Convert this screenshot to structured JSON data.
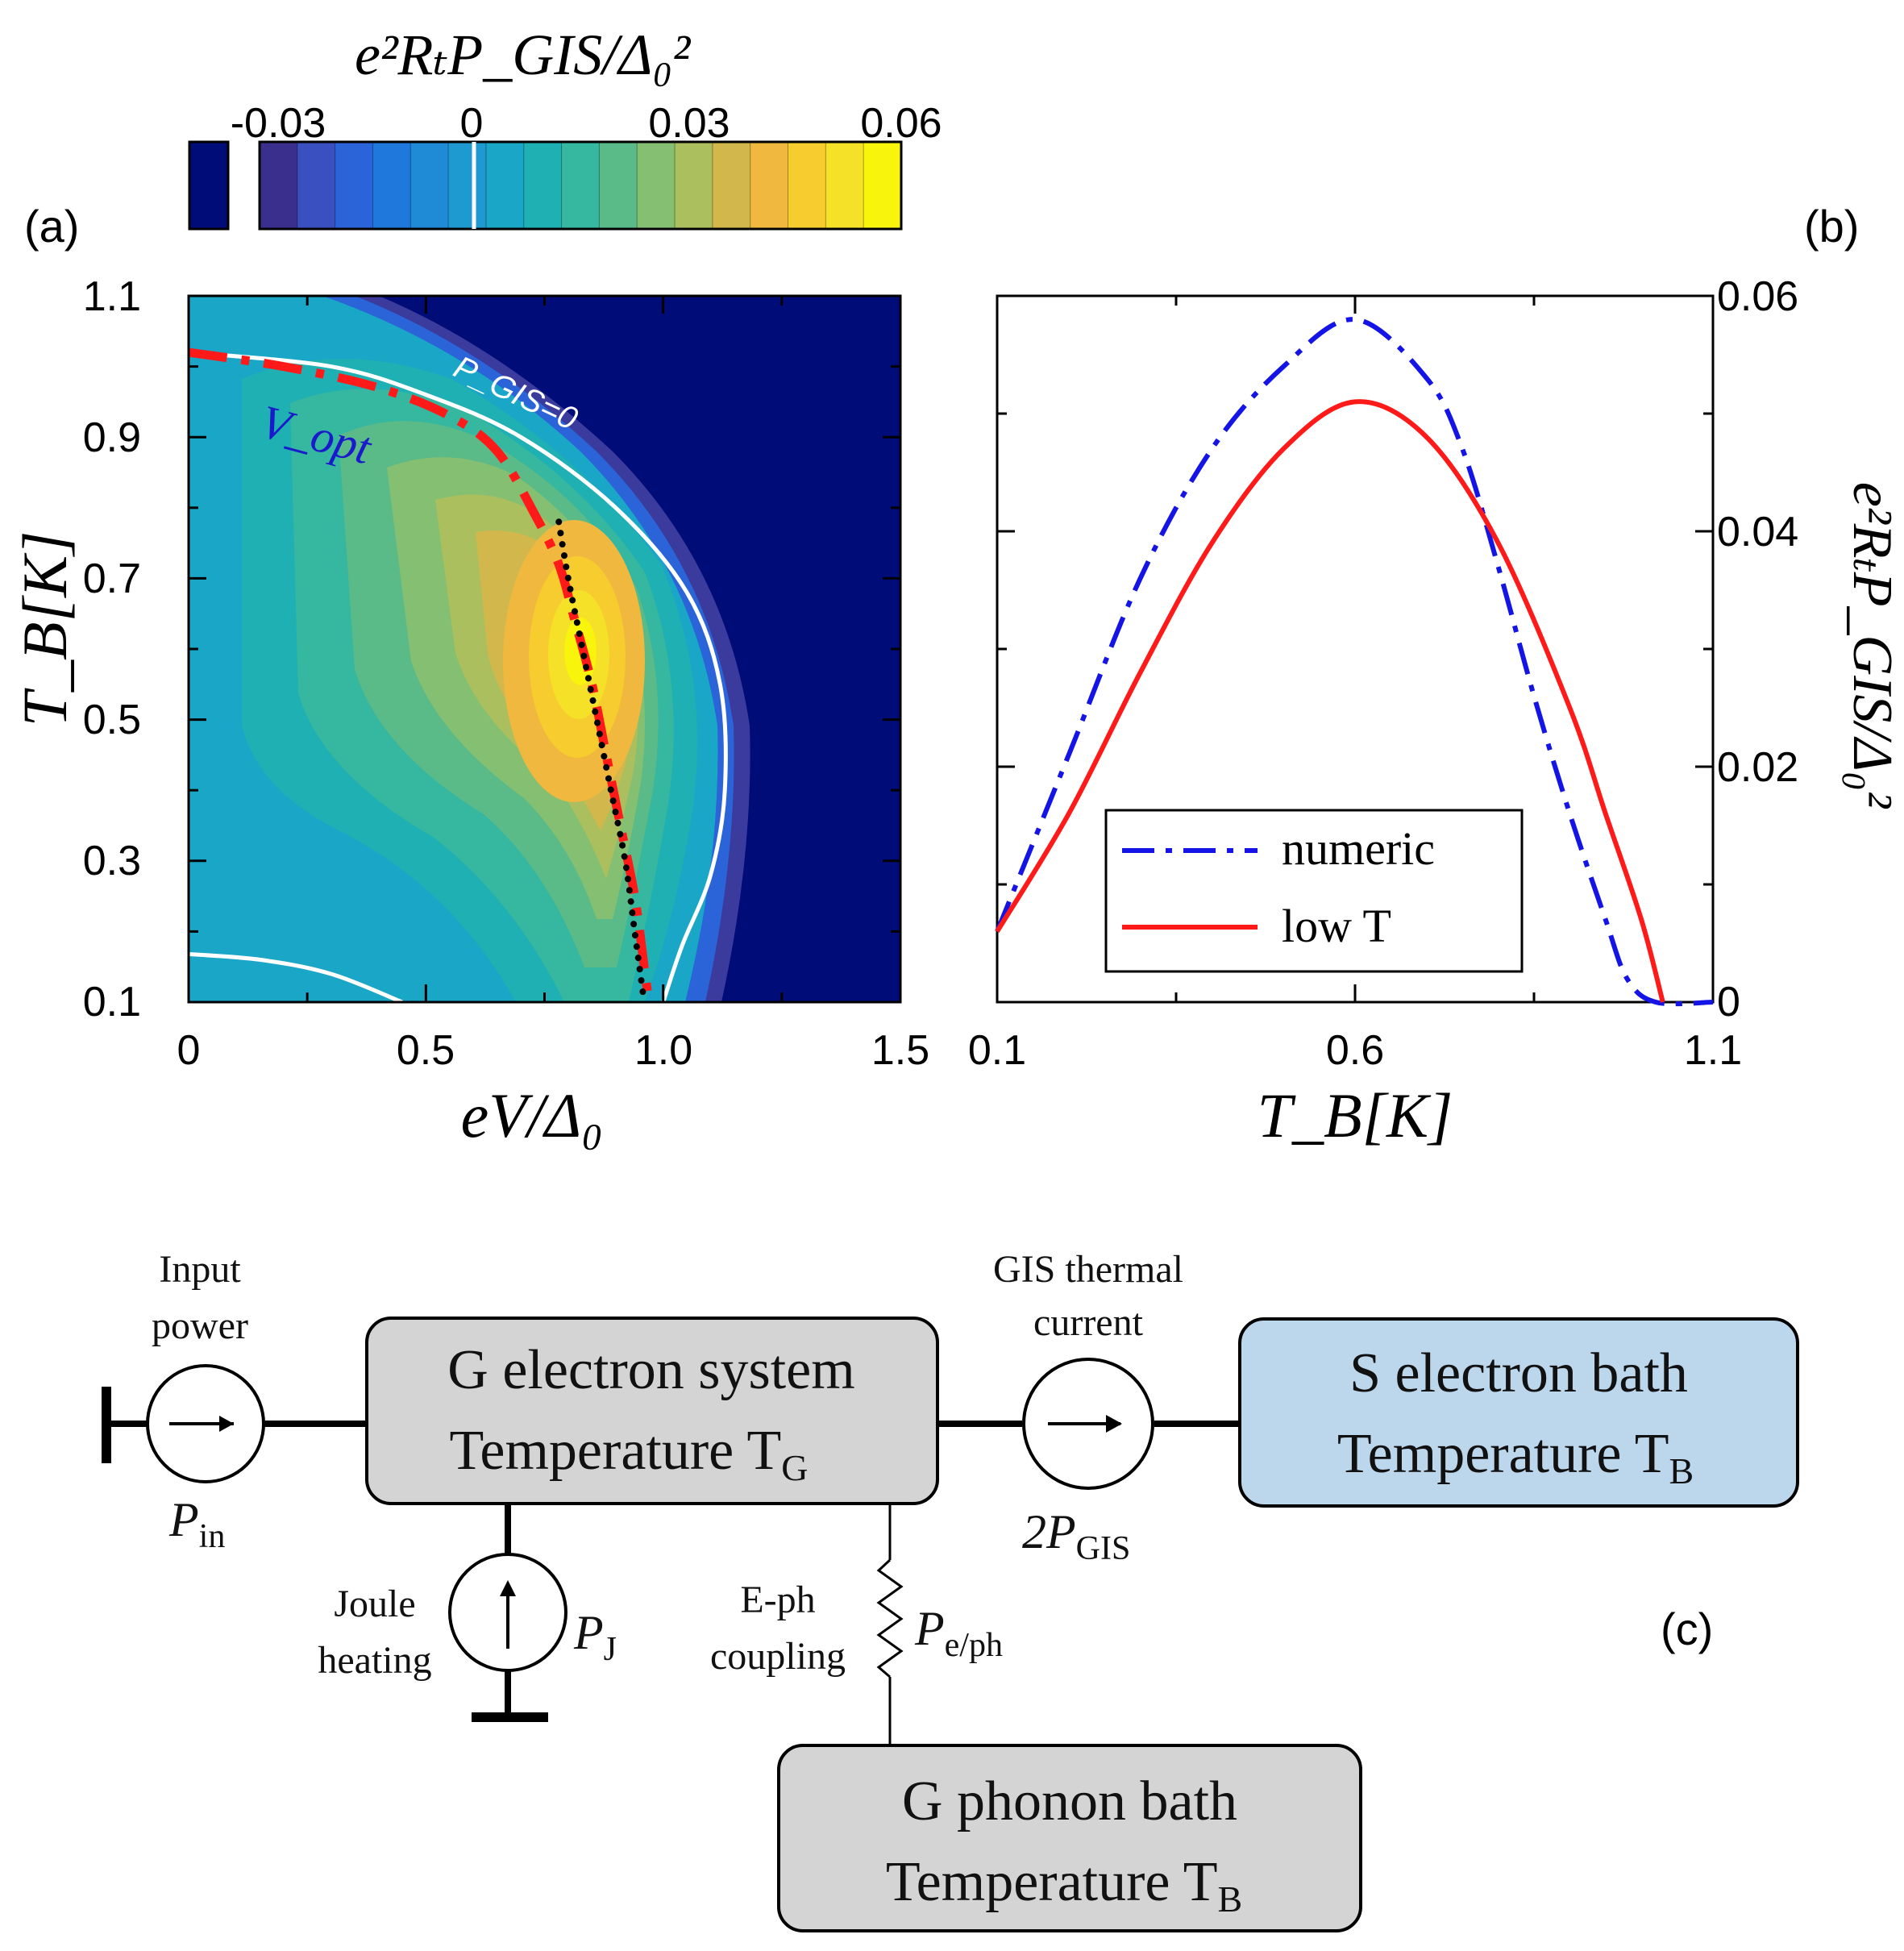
{
  "panel_labels": {
    "a": "(a)",
    "b": "(b)",
    "c": "(c)"
  },
  "colorbar": {
    "title": "e²RₜP_GIS/Δ₀²",
    "tick_labels": [
      "-0.03",
      "0",
      "0.03",
      "0.06"
    ],
    "range": [
      -0.03,
      0.06
    ],
    "colors": [
      "#3b2f8e",
      "#3a4fc0",
      "#2a64d8",
      "#1f78dc",
      "#1f8ad6",
      "#1e9ad0",
      "#1aa6c6",
      "#1fb0b4",
      "#35b7a0",
      "#5abb88",
      "#84bf72",
      "#acbf5e",
      "#d2b84c",
      "#f0b83e",
      "#f7cc2e",
      "#f5e128",
      "#f8f40c"
    ],
    "saturation_color": "#000c78"
  },
  "chart_data": [
    {
      "type": "heatmap",
      "panel": "(a)",
      "xlabel": "eV/Δ₀",
      "ylabel": "T_B[K]",
      "xlim": [
        0,
        1.5
      ],
      "ylim": [
        0.1,
        1.1
      ],
      "x_ticks": [
        "0",
        "0.5",
        "1.0",
        "1.5"
      ],
      "y_ticks": [
        "0.1",
        "0.3",
        "0.5",
        "0.7",
        "0.9",
        "1.1"
      ],
      "value_range": [
        -0.03,
        0.06
      ],
      "maximum": {
        "x": 0.84,
        "y": 0.6,
        "value": 0.058
      },
      "annotations": [
        "P_GIS=0",
        "V_opt"
      ],
      "zero_contour_upper": [
        [
          0.0,
          1.02
        ],
        [
          0.3,
          1.0
        ],
        [
          0.5,
          0.96
        ],
        [
          0.7,
          0.9
        ],
        [
          0.9,
          0.8
        ],
        [
          1.05,
          0.68
        ],
        [
          1.12,
          0.55
        ],
        [
          1.13,
          0.4
        ],
        [
          1.1,
          0.28
        ],
        [
          1.04,
          0.18
        ],
        [
          1.0,
          0.1
        ]
      ],
      "zero_contour_lower": [
        [
          0.0,
          0.168
        ],
        [
          0.15,
          0.16
        ],
        [
          0.3,
          0.14
        ],
        [
          0.45,
          0.1
        ]
      ],
      "v_opt_curve": [
        [
          0.0,
          1.02
        ],
        [
          0.2,
          1.0
        ],
        [
          0.4,
          0.97
        ],
        [
          0.55,
          0.93
        ],
        [
          0.65,
          0.88
        ],
        [
          0.73,
          0.79
        ],
        [
          0.78,
          0.72
        ],
        [
          0.81,
          0.65
        ],
        [
          0.85,
          0.55
        ],
        [
          0.88,
          0.45
        ],
        [
          0.91,
          0.35
        ],
        [
          0.94,
          0.25
        ],
        [
          0.96,
          0.15
        ],
        [
          0.97,
          0.1
        ]
      ],
      "low_T_curve": [
        [
          0.78,
          0.78
        ],
        [
          0.8,
          0.7
        ],
        [
          0.83,
          0.6
        ],
        [
          0.86,
          0.5
        ],
        [
          0.89,
          0.4
        ],
        [
          0.92,
          0.3
        ],
        [
          0.94,
          0.2
        ],
        [
          0.96,
          0.1
        ]
      ]
    },
    {
      "type": "line",
      "panel": "(b)",
      "xlabel": "T_B[K]",
      "ylabel": "e²RₜP_GIS/Δ₀²",
      "xlim": [
        0.1,
        1.1
      ],
      "ylim": [
        0,
        0.06
      ],
      "x_ticks": [
        "0.1",
        "0.6",
        "1.1"
      ],
      "y_ticks": [
        "0",
        "0.02",
        "0.04",
        "0.06"
      ],
      "legend": "bottom-left",
      "series": [
        {
          "name": "numeric",
          "color": "#1414e6",
          "style": "dash-dot",
          "x": [
            0.1,
            0.2,
            0.3,
            0.4,
            0.5,
            0.6,
            0.7,
            0.75,
            0.8,
            0.85,
            0.9,
            0.95,
            0.98,
            1.02,
            1.1
          ],
          "y": [
            0.006,
            0.021,
            0.036,
            0.047,
            0.054,
            0.058,
            0.053,
            0.047,
            0.037,
            0.026,
            0.016,
            0.007,
            0.002,
            0.0,
            0.0
          ]
        },
        {
          "name": "low T",
          "color": "#ff1a1a",
          "style": "solid",
          "x": [
            0.1,
            0.2,
            0.3,
            0.4,
            0.5,
            0.6,
            0.7,
            0.8,
            0.9,
            0.95,
            1.0,
            1.03
          ],
          "y": [
            0.006,
            0.016,
            0.028,
            0.039,
            0.047,
            0.051,
            0.048,
            0.039,
            0.025,
            0.016,
            0.007,
            0.0
          ]
        }
      ]
    }
  ],
  "diagram": {
    "boxes": {
      "g_electron": {
        "line1": "G electron system",
        "line2": "Temperature T",
        "sub": "G",
        "color": "#d4d4d4"
      },
      "s_electron": {
        "line1": "S electron bath",
        "line2": "Temperature T",
        "sub": "B",
        "color": "#bcd6ec"
      },
      "g_phonon": {
        "line1": "G phonon bath",
        "line2": "Temperature T",
        "sub": "B",
        "color": "#d4d4d4"
      }
    },
    "labels": {
      "input_power_1": "Input",
      "input_power_2": "power",
      "p_in": "P",
      "p_in_sub": "in",
      "gis_current_1": "GIS thermal",
      "gis_current_2": "current",
      "p_gis": "2P",
      "p_gis_sub": "GIS",
      "joule_1": "Joule",
      "joule_2": "heating",
      "p_j": "P",
      "p_j_sub": "J",
      "eph_1": "E-ph",
      "eph_2": "coupling",
      "p_eph": "P",
      "p_eph_sub": "e/ph"
    }
  }
}
